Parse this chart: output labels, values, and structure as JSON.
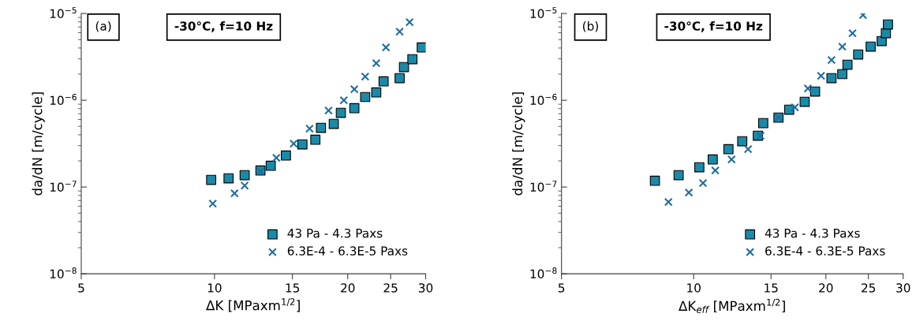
{
  "chart_data": [
    {
      "type": "scatter",
      "xlabel": "ΔK [MPaxm$^{1/2}$]",
      "ylabel": "da/dN [m/cycle]",
      "annotations": [
        "(a)",
        "-30°C, f=10 Hz"
      ],
      "log": "xy",
      "grid": false,
      "legend": "bottom right",
      "xlim": [
        5,
        30
      ],
      "xticks": [
        5,
        10,
        15,
        20,
        25,
        30
      ],
      "ylim": [
        1e-08,
        1e-05
      ],
      "yticks": [
        {
          "value": 1e-08,
          "label": "10$^{−8}$"
        },
        {
          "value": 1e-07,
          "label": "10$^{−7}$"
        },
        {
          "value": 1e-06,
          "label": "10$^{−6}$"
        },
        {
          "value": 1e-05,
          "label": "10$^{−5}$"
        }
      ],
      "series": [
        {
          "name": "43 Pa - 4.3 Paxs",
          "color": "#1a8aa8",
          "marker": "square",
          "x": [
            9.83,
            10.76,
            11.7,
            12.7,
            13.4,
            14.5,
            15.8,
            16.9,
            17.4,
            18.6,
            19.3,
            20.7,
            21.9,
            23.2,
            24.1,
            26.2,
            26.8,
            28.0,
            29.4
          ],
          "values": [
            1.21e-07,
            1.26e-07,
            1.37e-07,
            1.55e-07,
            1.76e-07,
            2.31e-07,
            3.1e-07,
            3.51e-07,
            4.81e-07,
            5.34e-07,
            7.16e-07,
            8.11e-07,
            1.09e-06,
            1.23e-06,
            1.65e-06,
            1.8e-06,
            2.41e-06,
            2.97e-06,
            4.06e-06
          ]
        },
        {
          "name": "6.3E-4 - 6.3E-5 Paxs",
          "color": "#1f6e9e",
          "marker": "cross",
          "x": [
            9.91,
            11.1,
            11.7,
            12.7,
            13.8,
            15.1,
            16.4,
            18.1,
            19.6,
            20.7,
            21.9,
            23.2,
            24.4,
            26.2,
            27.6
          ],
          "values": [
            6.44e-08,
            8.46e-08,
            1.04e-07,
            1.52e-07,
            2.17e-07,
            3.16e-07,
            4.71e-07,
            7.62e-07,
            1e-06,
            1.34e-06,
            1.87e-06,
            2.67e-06,
            4.06e-06,
            6.18e-06,
            7.94e-06
          ]
        }
      ]
    },
    {
      "type": "scatter",
      "xlabel": "ΔK$_{eff}$ [MPaxm$^{1/2}$]",
      "ylabel": "da/dN [m/cycle]",
      "annotations": [
        "(b)",
        "-30°C, f=10 Hz"
      ],
      "log": "xy",
      "grid": false,
      "legend": "bottom right",
      "xlim": [
        5,
        30
      ],
      "xticks": [
        5,
        10,
        15,
        20,
        25,
        30
      ],
      "ylim": [
        1e-08,
        1e-05
      ],
      "yticks": [
        {
          "value": 1e-08,
          "label": "10$^{−8}$"
        },
        {
          "value": 1e-07,
          "label": "10$^{−7}$"
        },
        {
          "value": 1e-06,
          "label": "10$^{−6}$"
        },
        {
          "value": 1e-05,
          "label": "10$^{−5}$"
        }
      ],
      "series": [
        {
          "name": "43 Pa - 4.3 Paxs",
          "color": "#1a8aa8",
          "marker": "square",
          "x": [
            8.16,
            9.24,
            10.3,
            11.05,
            12.0,
            12.9,
            14.0,
            14.4,
            15.6,
            16.5,
            17.9,
            18.9,
            20.6,
            21.8,
            22.4,
            23.7,
            25.3,
            26.8,
            27.4,
            27.7
          ],
          "values": [
            1.18e-07,
            1.37e-07,
            1.69e-07,
            2.08e-07,
            2.73e-07,
            3.37e-07,
            3.9e-07,
            5.45e-07,
            6.31e-07,
            7.78e-07,
            9.6e-07,
            1.26e-06,
            1.8e-06,
            2e-06,
            2.57e-06,
            3.37e-06,
            4.15e-06,
            4.81e-06,
            5.93e-06,
            7.46e-06
          ]
        },
        {
          "name": "6.3E-4 - 6.3E-5 Paxs",
          "color": "#1f6e9e",
          "marker": "cross",
          "x": [
            8.76,
            9.75,
            10.5,
            11.2,
            12.2,
            13.3,
            14.2,
            15.6,
            17.0,
            18.2,
            19.5,
            20.6,
            21.8,
            23.0,
            24.3
          ],
          "values": [
            6.72e-08,
            8.63e-08,
            1.11e-07,
            1.55e-07,
            2.08e-07,
            2.73e-07,
            3.9e-07,
            6.31e-07,
            8.28e-07,
            1.37e-06,
            1.91e-06,
            2.91e-06,
            4.15e-06,
            5.93e-06,
            9.59e-06
          ]
        }
      ]
    }
  ]
}
